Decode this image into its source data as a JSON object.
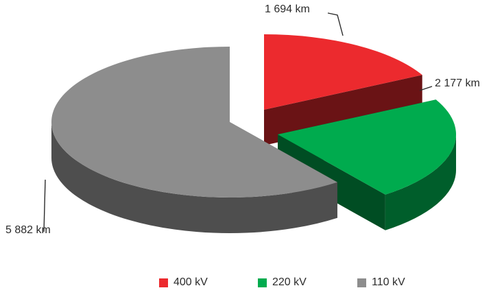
{
  "chart_data": {
    "type": "pie",
    "style": "3d-exploded",
    "categories": [
      "400 kV",
      "220 kV",
      "110 kV"
    ],
    "values": [
      1694,
      2177,
      5882
    ],
    "data_labels": [
      "1 694 km",
      "2 177 km",
      "5 882 km"
    ],
    "unit": "km",
    "colors": [
      "#ec2a2e",
      "#00ab4e",
      "#8d8d8d"
    ],
    "legend": {
      "position": "bottom",
      "entries": [
        "400 kV",
        "220 kV",
        "110 kV"
      ]
    }
  }
}
